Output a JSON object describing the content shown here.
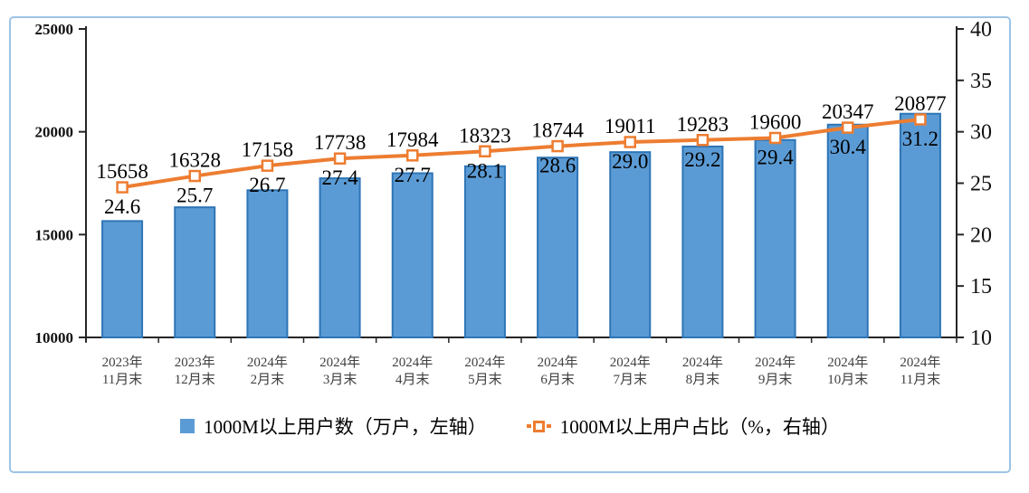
{
  "chart": {
    "colors": {
      "bar_fill": "#5B9BD5",
      "bar_border": "#2E75B6",
      "line": "#ED7D31",
      "marker_fill": "#FFFFFF",
      "axis": "#262626",
      "x_label": "#404040",
      "frame_border": "#9DC3E6",
      "data_label": "#000000"
    }
  },
  "legend": {
    "items": [
      {
        "label": "1000M以上用户数（万户，左轴）",
        "type": "bar"
      },
      {
        "label": "1000M以上用户占比（%，右轴）",
        "type": "line"
      }
    ]
  },
  "chart_data": {
    "type": "combo-bar-line",
    "title": "",
    "grid": false,
    "legend_position": "bottom",
    "categories": [
      [
        "2023年",
        "11月末"
      ],
      [
        "2023年",
        "12月末"
      ],
      [
        "2024年",
        "2月末"
      ],
      [
        "2024年",
        "3月末"
      ],
      [
        "2024年",
        "4月末"
      ],
      [
        "2024年",
        "5月末"
      ],
      [
        "2024年",
        "6月末"
      ],
      [
        "2024年",
        "7月末"
      ],
      [
        "2024年",
        "8月末"
      ],
      [
        "2024年",
        "9月末"
      ],
      [
        "2024年",
        "10月末"
      ],
      [
        "2024年",
        "11月末"
      ]
    ],
    "series": [
      {
        "name": "1000M以上用户数（万户，左轴）",
        "type": "bar",
        "axis": "left",
        "values": [
          15658,
          16328,
          17158,
          17738,
          17984,
          18323,
          18744,
          19011,
          19283,
          19600,
          20347,
          20877
        ]
      },
      {
        "name": "1000M以上用户占比（%，右轴）",
        "type": "line",
        "axis": "right",
        "values": [
          24.6,
          25.7,
          26.7,
          27.4,
          27.7,
          28.1,
          28.6,
          29.0,
          29.2,
          29.4,
          30.4,
          31.2
        ],
        "values_display": [
          "24.6",
          "25.7",
          "26.7",
          "27.4",
          "27.7",
          "28.1",
          "28.6",
          "29.0",
          "29.2",
          "29.4",
          "30.4",
          "31.2"
        ]
      }
    ],
    "left_axis": {
      "min": 10000,
      "max": 25000,
      "step": 5000,
      "ticks": [
        25000,
        20000,
        15000,
        10000
      ]
    },
    "right_axis": {
      "min": 10,
      "max": 40,
      "step": 5,
      "ticks": [
        40,
        35,
        30,
        25,
        20,
        15,
        10
      ]
    }
  }
}
